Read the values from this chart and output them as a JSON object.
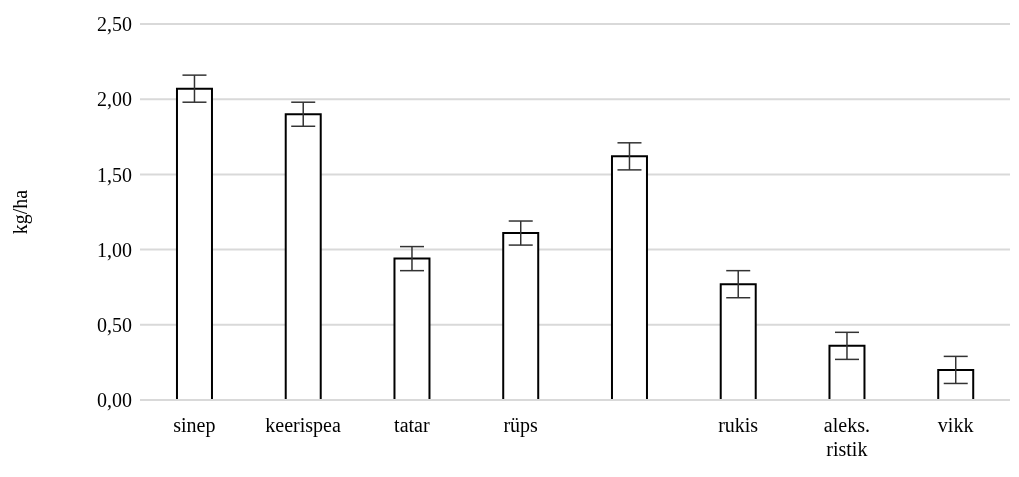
{
  "chart_data": {
    "type": "bar",
    "ylabel": "kg/ha",
    "categories": [
      "sinep",
      "keerispea",
      "tatar",
      "rüps",
      null,
      "rukis",
      "aleks. ristik",
      "vikk"
    ],
    "values": [
      2.07,
      1.9,
      0.94,
      1.11,
      1.62,
      0.77,
      0.36,
      0.2
    ],
    "errors": [
      0.09,
      0.08,
      0.08,
      0.08,
      0.09,
      0.09,
      0.09,
      0.09
    ],
    "color": "#ffffff",
    "ylim": [
      0,
      2.5
    ],
    "yticks": [
      {
        "value": 0,
        "label": "0,00"
      },
      {
        "value": 0.5,
        "label": "0,50"
      },
      {
        "value": 1,
        "label": "1,00"
      },
      {
        "value": 1.5,
        "label": "1,50"
      },
      {
        "value": 2,
        "label": "2,00"
      },
      {
        "value": 2.5,
        "label": "2,50"
      }
    ],
    "grid": "y"
  }
}
